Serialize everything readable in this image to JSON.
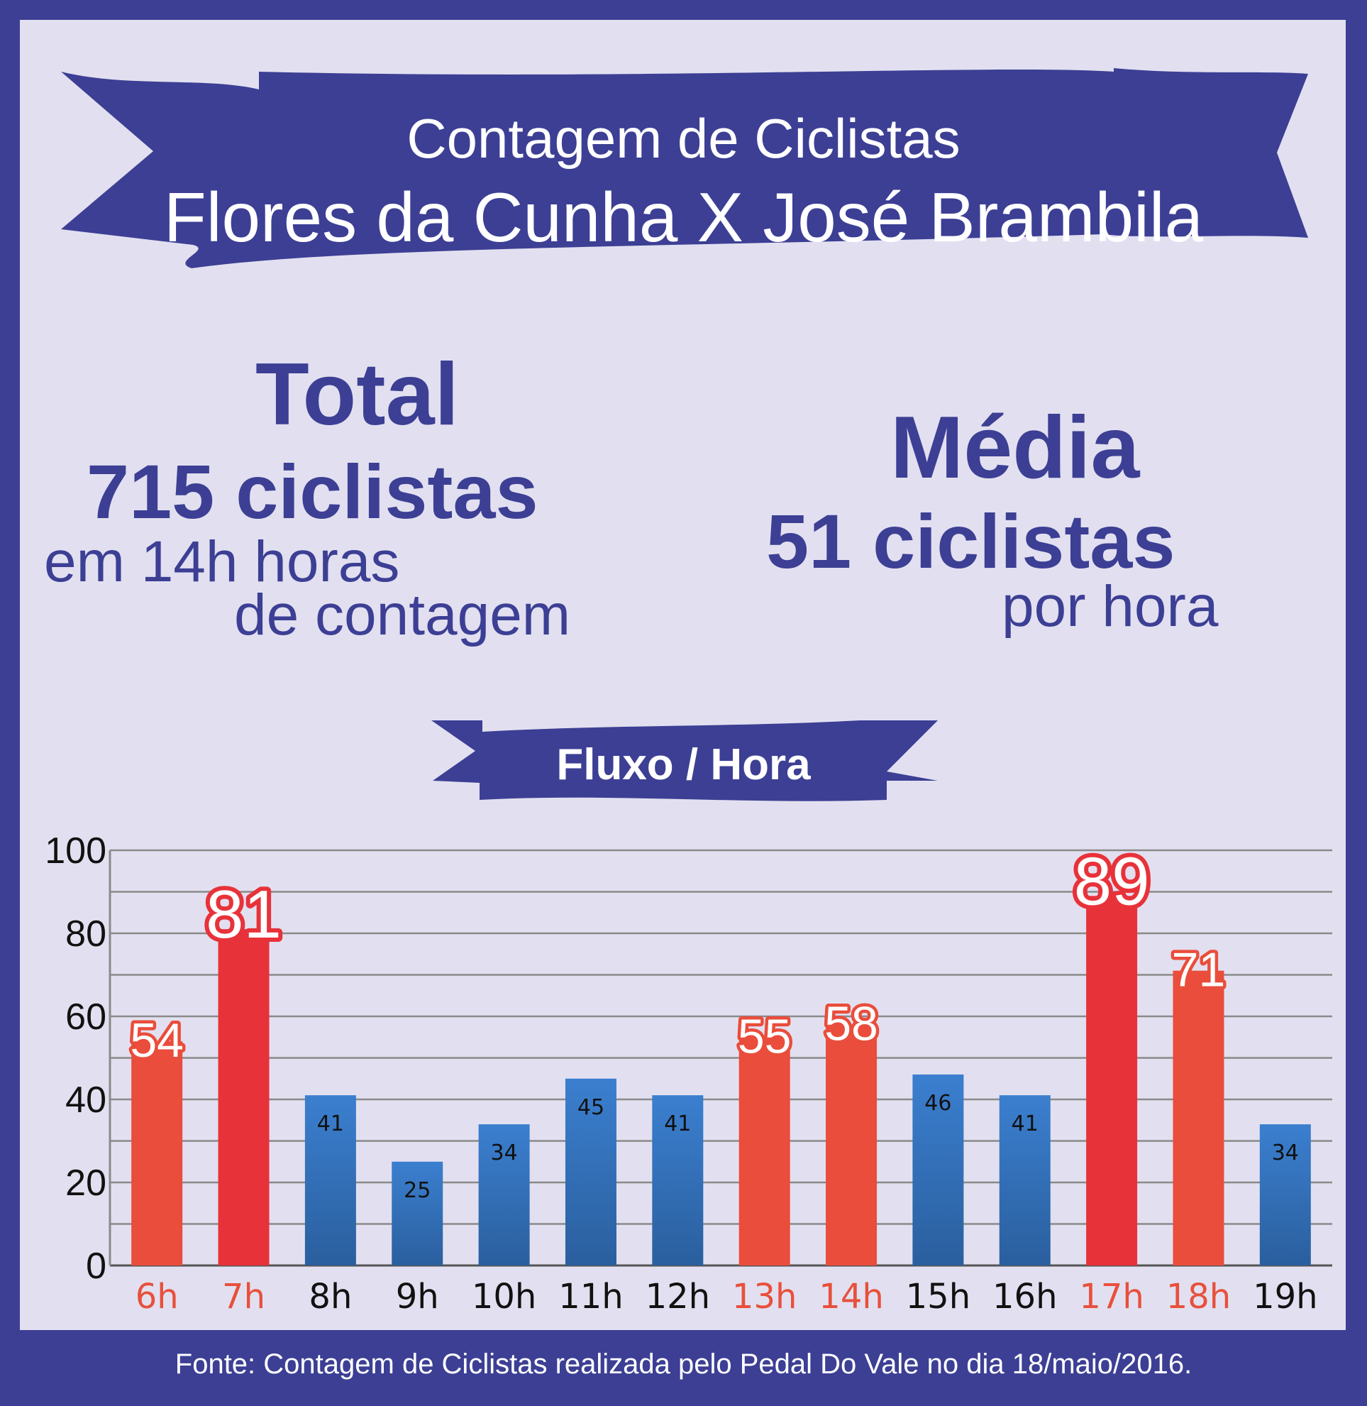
{
  "title": {
    "line1": "Contagem de Ciclistas",
    "line2": "Flores da Cunha X José Brambila"
  },
  "summary": {
    "total_label": "Total",
    "total_value": "715 ciclistas",
    "total_sub1": "em 14h horas",
    "total_sub2": "de contagem",
    "avg_label": "Média",
    "avg_value": "51 ciclistas",
    "avg_sub": "por hora"
  },
  "chart_title": "Fluxo / Hora",
  "footer": "Fonte: Contagem de Ciclistas realizada pelo Pedal Do Vale no dia 18/maio/2016.",
  "colors": {
    "background": "#3c3f94",
    "panel": "#e2e0f0",
    "bar_normal": "#3577c4",
    "bar_high": "#ea4d3b",
    "bar_peak": "#e8323a",
    "label_high": "#e8503c"
  },
  "chart_data": {
    "type": "bar",
    "categories": [
      "6h",
      "7h",
      "8h",
      "9h",
      "10h",
      "11h",
      "12h",
      "13h",
      "14h",
      "15h",
      "16h",
      "17h",
      "18h",
      "19h"
    ],
    "values": [
      54,
      81,
      41,
      25,
      34,
      45,
      41,
      55,
      58,
      46,
      41,
      89,
      71,
      34
    ],
    "highlight": [
      "high",
      "peak",
      "normal",
      "normal",
      "normal",
      "normal",
      "normal",
      "high",
      "high",
      "normal",
      "normal",
      "peak",
      "high",
      "normal"
    ],
    "title": "Fluxo / Hora",
    "xlabel": "",
    "ylabel": "",
    "ylim": [
      0,
      100
    ],
    "yticks": [
      "0",
      "20",
      "40",
      "60",
      "80",
      "100"
    ],
    "grid": true
  }
}
